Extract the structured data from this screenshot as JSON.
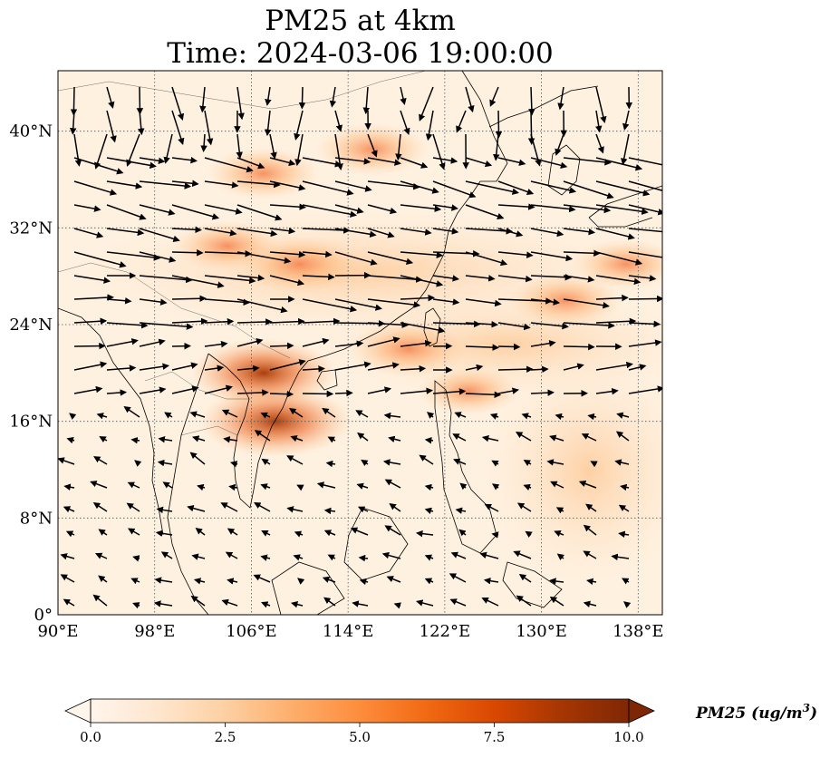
{
  "title_line1": "PM25 at 4km",
  "title_line2": "Time: 2024-03-06 19:00:00",
  "map": {
    "lon_range": [
      90,
      140
    ],
    "lat_range": [
      0,
      45
    ],
    "lon_ticks": [
      {
        "value": 90,
        "label": "90°E"
      },
      {
        "value": 98,
        "label": "98°E"
      },
      {
        "value": 106,
        "label": "106°E"
      },
      {
        "value": 114,
        "label": "114°E"
      },
      {
        "value": 122,
        "label": "122°E"
      },
      {
        "value": 130,
        "label": "130°E"
      },
      {
        "value": 138,
        "label": "138°E"
      }
    ],
    "lat_ticks": [
      {
        "value": 0,
        "label": "0°"
      },
      {
        "value": 8,
        "label": "8°N"
      },
      {
        "value": 16,
        "label": "16°N"
      },
      {
        "value": 24,
        "label": "24°N"
      },
      {
        "value": 32,
        "label": "32°N"
      },
      {
        "value": 40,
        "label": "40°N"
      }
    ],
    "gridlines": "dotted",
    "high_concentration_areas": [
      {
        "lon": 108,
        "lat": 16,
        "level": 9.5
      },
      {
        "lon": 107,
        "lat": 20,
        "level": 9
      },
      {
        "lon": 110,
        "lat": 29,
        "level": 7
      },
      {
        "lon": 104,
        "lat": 30.5,
        "level": 5.5
      },
      {
        "lon": 107,
        "lat": 36.5,
        "level": 6
      },
      {
        "lon": 116,
        "lat": 38.5,
        "level": 6
      },
      {
        "lon": 119,
        "lat": 22,
        "level": 6.5
      },
      {
        "lon": 124,
        "lat": 18.5,
        "level": 5
      },
      {
        "lon": 132,
        "lat": 26,
        "level": 6
      },
      {
        "lon": 137,
        "lat": 29,
        "level": 5.5
      }
    ]
  },
  "colorbar": {
    "min": 0,
    "max": 10,
    "ticks": [
      "0.0",
      "2.5",
      "5.0",
      "7.5",
      "10.0"
    ],
    "colormap": [
      "#fff5eb",
      "#fee6ce",
      "#fdd0a2",
      "#fdae6b",
      "#fd8d3c",
      "#f16913",
      "#d94801",
      "#a63603",
      "#7f2704"
    ],
    "label_text": "PM25 (ug/m",
    "label_sup": "3",
    "label_close": ")"
  }
}
